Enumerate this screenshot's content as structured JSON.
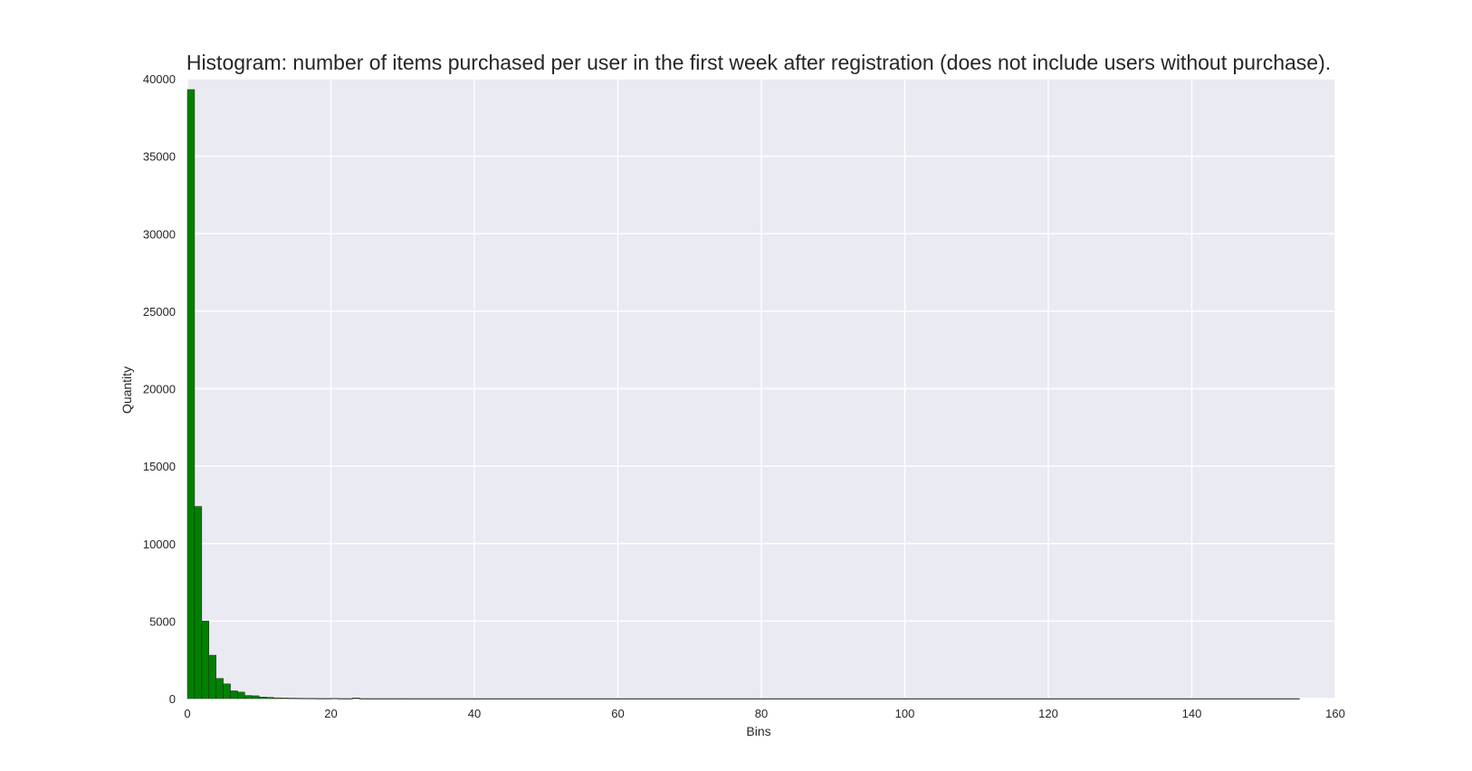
{
  "chart_data": {
    "type": "bar",
    "subtype": "histogram",
    "title": "Histogram: number of items purchased per user in the first week after registration (does not include users without purchase).",
    "xlabel": "Bins",
    "ylabel": "Quantity",
    "xlim": [
      0,
      160
    ],
    "ylim": [
      0,
      40000
    ],
    "xticks": [
      0,
      20,
      40,
      60,
      80,
      100,
      120,
      140,
      160
    ],
    "yticks": [
      0,
      5000,
      10000,
      15000,
      20000,
      25000,
      30000,
      35000,
      40000
    ],
    "grid": true,
    "bar_color": "#008000",
    "bar_edge_color": "#262626",
    "plot_background": "#eaeaf2",
    "bins": [
      {
        "x0": 0,
        "x1": 1,
        "value": 39300
      },
      {
        "x0": 1,
        "x1": 2,
        "value": 12400
      },
      {
        "x0": 2,
        "x1": 3,
        "value": 5000
      },
      {
        "x0": 3,
        "x1": 4,
        "value": 2800
      },
      {
        "x0": 4,
        "x1": 5,
        "value": 1300
      },
      {
        "x0": 5,
        "x1": 6,
        "value": 950
      },
      {
        "x0": 6,
        "x1": 7,
        "value": 500
      },
      {
        "x0": 7,
        "x1": 8,
        "value": 420
      },
      {
        "x0": 8,
        "x1": 9,
        "value": 200
      },
      {
        "x0": 9,
        "x1": 10,
        "value": 180
      },
      {
        "x0": 10,
        "x1": 11,
        "value": 100
      },
      {
        "x0": 11,
        "x1": 12,
        "value": 80
      },
      {
        "x0": 12,
        "x1": 13,
        "value": 50
      },
      {
        "x0": 13,
        "x1": 14,
        "value": 40
      },
      {
        "x0": 14,
        "x1": 15,
        "value": 30
      },
      {
        "x0": 15,
        "x1": 16,
        "value": 25
      },
      {
        "x0": 16,
        "x1": 17,
        "value": 20
      },
      {
        "x0": 17,
        "x1": 18,
        "value": 15
      },
      {
        "x0": 18,
        "x1": 19,
        "value": 10
      },
      {
        "x0": 19,
        "x1": 20,
        "value": 8
      },
      {
        "x0": 20,
        "x1": 21,
        "value": 20
      },
      {
        "x0": 21,
        "x1": 22,
        "value": 6
      },
      {
        "x0": 22,
        "x1": 23,
        "value": 5
      },
      {
        "x0": 23,
        "x1": 24,
        "value": 40
      },
      {
        "x0": 24,
        "x1": 25,
        "value": 4
      },
      {
        "x0": 25,
        "x1": 30,
        "value": 3
      },
      {
        "x0": 30,
        "x1": 40,
        "value": 2
      },
      {
        "x0": 40,
        "x1": 60,
        "value": 1
      },
      {
        "x0": 60,
        "x1": 100,
        "value": 1
      },
      {
        "x0": 100,
        "x1": 155,
        "value": 1
      }
    ]
  }
}
